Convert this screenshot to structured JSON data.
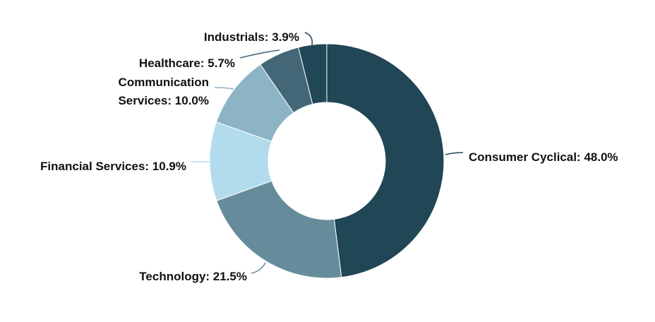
{
  "chart_data": {
    "type": "pie",
    "variant": "donut",
    "title": "",
    "legend": "none",
    "slices": [
      {
        "label": "Consumer Cyclical",
        "value": 48.0,
        "color": "#214656",
        "label_lines": [
          "Consumer Cyclical: 48.0%"
        ]
      },
      {
        "label": "Technology",
        "value": 21.5,
        "color": "#668c9b",
        "label_lines": [
          "Technology: 21.5%"
        ]
      },
      {
        "label": "Financial Services",
        "value": 10.9,
        "color": "#b2dced",
        "label_lines": [
          "Financial Services: 10.9%"
        ]
      },
      {
        "label": "Communication Services",
        "value": 10.0,
        "color": "#8cb4c5",
        "label_lines": [
          "Communication",
          "Services: 10.0%"
        ]
      },
      {
        "label": "Healthcare",
        "value": 5.7,
        "color": "#436777",
        "label_lines": [
          "Healthcare: 5.7%"
        ]
      },
      {
        "label": "Industrials",
        "value": 3.9,
        "color": "#214656",
        "label_lines": [
          "Industrials: 3.9%"
        ]
      }
    ]
  }
}
